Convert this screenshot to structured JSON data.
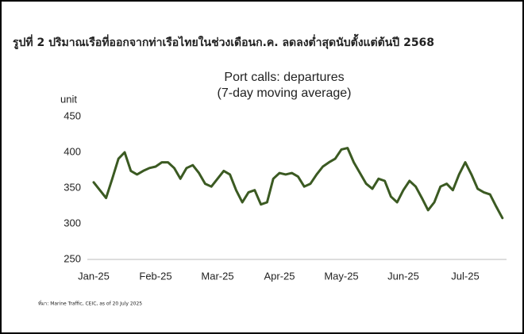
{
  "heading": "รูปที่ 2 ปริมาณเรือที่ออกจากท่าเรือไทยในช่วงเดือนก.ค. ลดลงต่ำสุดนับตั้งแต่ต้นปี 2568",
  "source": "ที่มา: Marine Traffic, CEIC, as of 20 July 2025",
  "chart_data": {
    "type": "line",
    "title": "Port calls: departures",
    "subtitle": "(7-day moving average)",
    "y_label": "unit",
    "categories": [
      "Jan-25",
      null,
      null,
      null,
      null,
      null,
      null,
      null,
      null,
      null,
      "Feb-25",
      null,
      null,
      null,
      null,
      null,
      null,
      null,
      null,
      null,
      "Mar-25",
      null,
      null,
      null,
      null,
      null,
      null,
      null,
      null,
      null,
      "Apr-25",
      null,
      null,
      null,
      null,
      null,
      null,
      null,
      null,
      null,
      "May-25",
      null,
      null,
      null,
      null,
      null,
      null,
      null,
      null,
      null,
      "Jun-25",
      null,
      null,
      null,
      null,
      null,
      null,
      null,
      null,
      null,
      "Jul-25",
      null,
      null,
      null,
      null,
      null,
      null
    ],
    "series": [
      {
        "name": "Port calls: departures",
        "color": "#3b5a22",
        "values": [
          358,
          347,
          336,
          363,
          391,
          400,
          374,
          369,
          374,
          378,
          380,
          386,
          386,
          378,
          363,
          378,
          382,
          371,
          356,
          352,
          363,
          374,
          369,
          347,
          330,
          344,
          347,
          327,
          330,
          363,
          371,
          369,
          371,
          366,
          352,
          356,
          369,
          380,
          386,
          391,
          404,
          406,
          386,
          371,
          356,
          349,
          363,
          360,
          338,
          330,
          347,
          360,
          352,
          336,
          319,
          330,
          352,
          356,
          347,
          369,
          386,
          369,
          349,
          344,
          341,
          324,
          308
        ]
      }
    ],
    "ylim": [
      250,
      450
    ],
    "yticks": [
      250,
      300,
      350,
      400,
      450
    ],
    "grid": false
  }
}
